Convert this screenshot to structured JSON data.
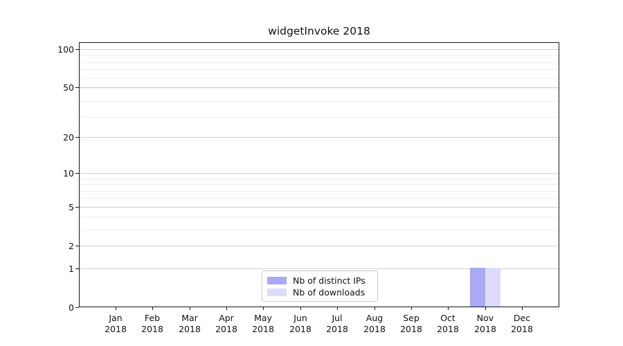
{
  "chart_data": {
    "type": "bar",
    "title": "widgetInvoke 2018",
    "categories": [
      "Jan 2018",
      "Feb 2018",
      "Mar 2018",
      "Apr 2018",
      "May 2018",
      "Jun 2018",
      "Jul 2018",
      "Aug 2018",
      "Sep 2018",
      "Oct 2018",
      "Nov 2018",
      "Dec 2018"
    ],
    "series": [
      {
        "name": "Nb of distinct IPs",
        "color": "#a9a9f6",
        "values": [
          0,
          0,
          0,
          0,
          0,
          0,
          0,
          0,
          0,
          0,
          1,
          0
        ]
      },
      {
        "name": "Nb of downloads",
        "color": "#dcdcfa",
        "values": [
          0,
          0,
          0,
          0,
          0,
          0,
          0,
          0,
          0,
          0,
          1,
          0
        ]
      }
    ],
    "xlabel": "",
    "ylabel": "",
    "y_axis": {
      "scale": "log10(value+1)",
      "ticks": [
        0,
        1,
        2,
        5,
        10,
        20,
        50,
        100
      ],
      "ylim": [
        0,
        113
      ],
      "minor_gridline_values": [
        3,
        4,
        6,
        7,
        8,
        9,
        19,
        29,
        39,
        49,
        59,
        69,
        79,
        89
      ]
    },
    "grid": true,
    "legend_position": "lower-center-inside"
  },
  "colors": {
    "background": "#ffffff",
    "spine": "#151515",
    "grid_major": "#cfcfcf",
    "grid_minor": "#ededed",
    "text": "#111111",
    "legend_border": "#cbcbcb",
    "bar_distinct_ips": "#a9a9f6",
    "bar_downloads": "#dcdcfa"
  }
}
